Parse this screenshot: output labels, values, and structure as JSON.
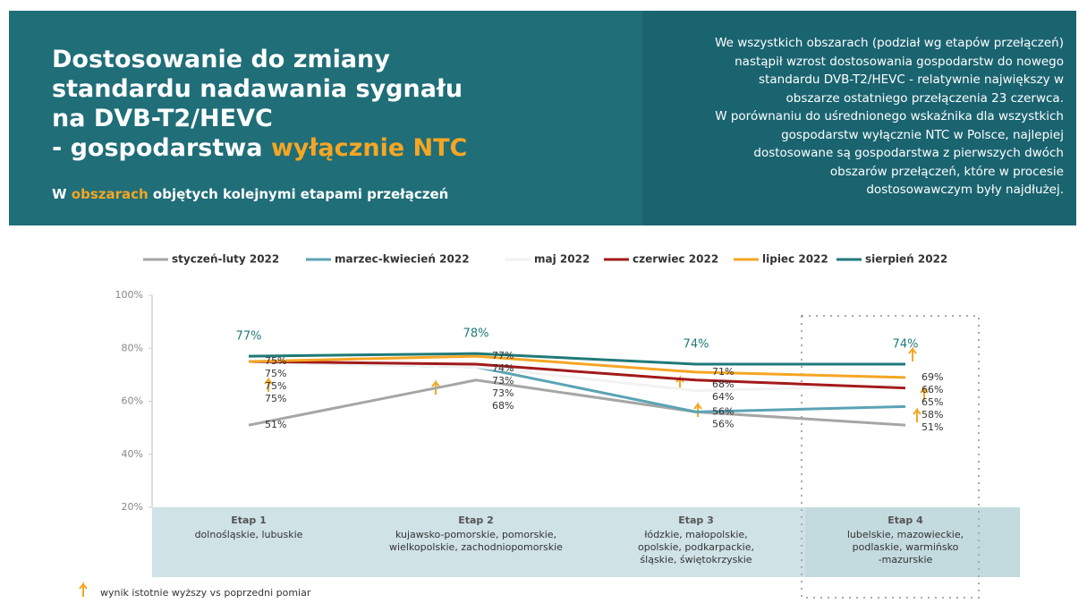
{
  "header": {
    "title_lines": [
      "Dostosowanie do zmiany",
      "standardu nadawania sygnału",
      "na DVB-T2/HEVC",
      "- gospodarstwa "
    ],
    "title_highlight": "wyłącznie NTC",
    "subtitle_start": "W ",
    "subtitle_highlight": "obszarach",
    "subtitle_end": " objętych kolejnymi etapami przełączeń",
    "description_lines": [
      "We wszystkich obszarach (podział wg etapów przełączeń)",
      "nastąpił wzrost dostosowania gospodarstw do nowego",
      "standardu DVB-T2/HEVC - relatywnie największy w",
      "obszarze ostatniego przełączenia 23 czerwca.",
      "W porównaniu do uśrednionego wskaźnika dla wszystkich",
      "gospodarstw wyłącznie NTC w Polsce, najlepiej",
      "dostosowane są gospodarstwa z pierwszych dwóch",
      "obszarów przełączeń, które w procesie",
      "dostosowawczym były najdłużej."
    ]
  },
  "chart_data": {
    "type": "line",
    "categories": [
      "Etap 1",
      "Etap 2",
      "Etap 3",
      "Etap 4"
    ],
    "regions": [
      [
        "dolnośląskie, lubuskie"
      ],
      [
        "kujawsko-pomorskie, pomorskie,",
        "wielkopolskie, zachodniopomorskie"
      ],
      [
        "łódzkie, małopolskie,",
        "opolskie, podkarpackie,",
        "śląskie, świętokrzyskie"
      ],
      [
        "lubelskie, mazowieckie,",
        "podlaskie, warmińsko",
        "-mazurskie"
      ]
    ],
    "series": [
      {
        "name": "styczeń-luty 2022",
        "color": "#a6a6a6",
        "values": [
          51,
          68,
          56,
          51
        ],
        "value_labels": [
          "51%",
          "68%",
          "56%",
          "51%"
        ]
      },
      {
        "name": "marzec-kwiecień 2022",
        "color": "#5ba3b4",
        "values": [
          75,
          73,
          56,
          58
        ],
        "value_labels": [
          "75%",
          "73%",
          "56%",
          "58%"
        ]
      },
      {
        "name": "maj 2022",
        "color": "#f2f2f2",
        "values": [
          75,
          73,
          64,
          66
        ],
        "value_labels": [
          "75%",
          "73%",
          "64%",
          "66%"
        ]
      },
      {
        "name": "czerwiec 2022",
        "color": "#a31a1a",
        "values": [
          75,
          74,
          68,
          65
        ],
        "value_labels": [
          "75%",
          "74%",
          "68%",
          "65%"
        ]
      },
      {
        "name": "lipiec 2022",
        "color": "#f5a623",
        "values": [
          75,
          77,
          71,
          69
        ],
        "value_labels": [
          "75%",
          "77%",
          "71%",
          "69%"
        ]
      },
      {
        "name": "sierpień 2022",
        "color": "#1f7a78",
        "values": [
          77,
          78,
          74,
          74
        ],
        "value_labels": [
          "77%",
          "78%",
          "74%",
          "74%"
        ]
      }
    ],
    "ylim": [
      20,
      100
    ],
    "yticks": [
      {
        "value": 20,
        "label": "20%"
      },
      {
        "value": 40,
        "label": "40%"
      },
      {
        "value": 60,
        "label": "60%"
      },
      {
        "value": 80,
        "label": "80%"
      },
      {
        "value": 100,
        "label": "100%"
      }
    ],
    "footnote": "wynik istotnie wyższy vs poprzedni pomiar"
  }
}
